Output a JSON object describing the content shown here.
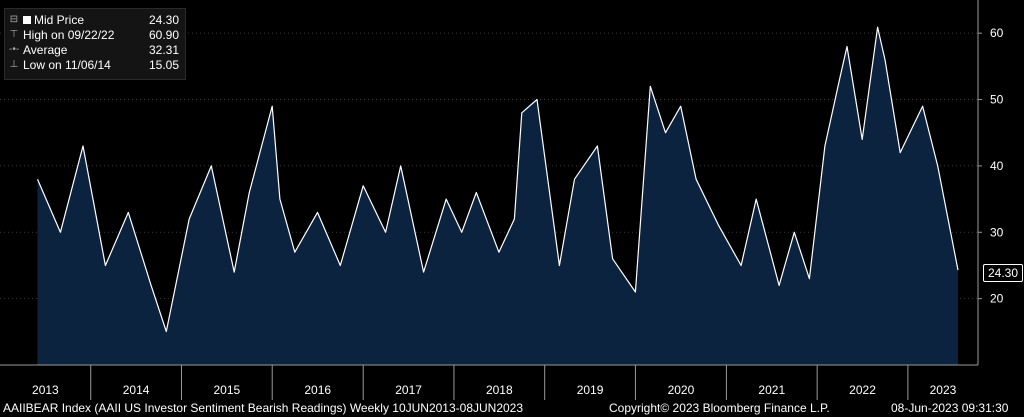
{
  "legend": {
    "rows": [
      {
        "icon": "minus-box",
        "label": "Mid Price",
        "value": "24.30"
      },
      {
        "icon": "high-marker",
        "label": "High on 09/22/22",
        "value": "60.90"
      },
      {
        "icon": "average-marker",
        "label": "Average",
        "value": "32.31"
      },
      {
        "icon": "low-marker",
        "label": "Low on 11/06/14",
        "value": "15.05"
      }
    ]
  },
  "last_value_label": "24.30",
  "footer": {
    "series": "AAIIBEAR Index (AAII US Investor Sentiment Bearish Readings)  Weekly 10JUN2013-08JUN2023",
    "copyright": "Copyright© 2023 Bloomberg Finance L.P.",
    "timestamp": "08-Jun-2023 09:31:30"
  },
  "colors": {
    "background": "#000000",
    "area_fill": "#0c2340",
    "line": "#ffffff",
    "grid": "#3a3a3a",
    "axis": "#9a9a9a"
  },
  "chart_data": {
    "type": "area",
    "ylim": [
      10,
      65
    ],
    "yticks": [
      20,
      30,
      40,
      50,
      60
    ],
    "xticks": [
      "2013",
      "2014",
      "2015",
      "2016",
      "2017",
      "2018",
      "2019",
      "2020",
      "2021",
      "2022",
      "2023"
    ],
    "x": [
      "2013-06",
      "2013-09",
      "2013-12",
      "2014-03",
      "2014-06",
      "2014-09",
      "2014-11",
      "2015-02",
      "2015-05",
      "2015-08",
      "2015-10",
      "2016-01",
      "2016-02",
      "2016-04",
      "2016-07",
      "2016-10",
      "2017-01",
      "2017-04",
      "2017-06",
      "2017-09",
      "2017-12",
      "2018-02",
      "2018-04",
      "2018-07",
      "2018-09",
      "2018-10",
      "2018-12",
      "2019-03",
      "2019-05",
      "2019-08",
      "2019-10",
      "2020-01",
      "2020-03",
      "2020-05",
      "2020-07",
      "2020-09",
      "2020-12",
      "2021-03",
      "2021-05",
      "2021-08",
      "2021-10",
      "2021-12",
      "2022-02",
      "2022-04",
      "2022-05",
      "2022-07",
      "2022-09",
      "2022-10",
      "2022-12",
      "2023-03",
      "2023-05",
      "2023-06"
    ],
    "series": [
      {
        "values": [
          38,
          30,
          43,
          25,
          33,
          22,
          15.05,
          32,
          40,
          24,
          36,
          49,
          35,
          27,
          33,
          25,
          37,
          30,
          40,
          24,
          35,
          30,
          36,
          27,
          32,
          48,
          50,
          25,
          38,
          43,
          26,
          21,
          52,
          45,
          49,
          38,
          31,
          25,
          35,
          22,
          30,
          23,
          43,
          53,
          58,
          44,
          60.9,
          56,
          42,
          49,
          40,
          24.3
        ]
      }
    ]
  }
}
